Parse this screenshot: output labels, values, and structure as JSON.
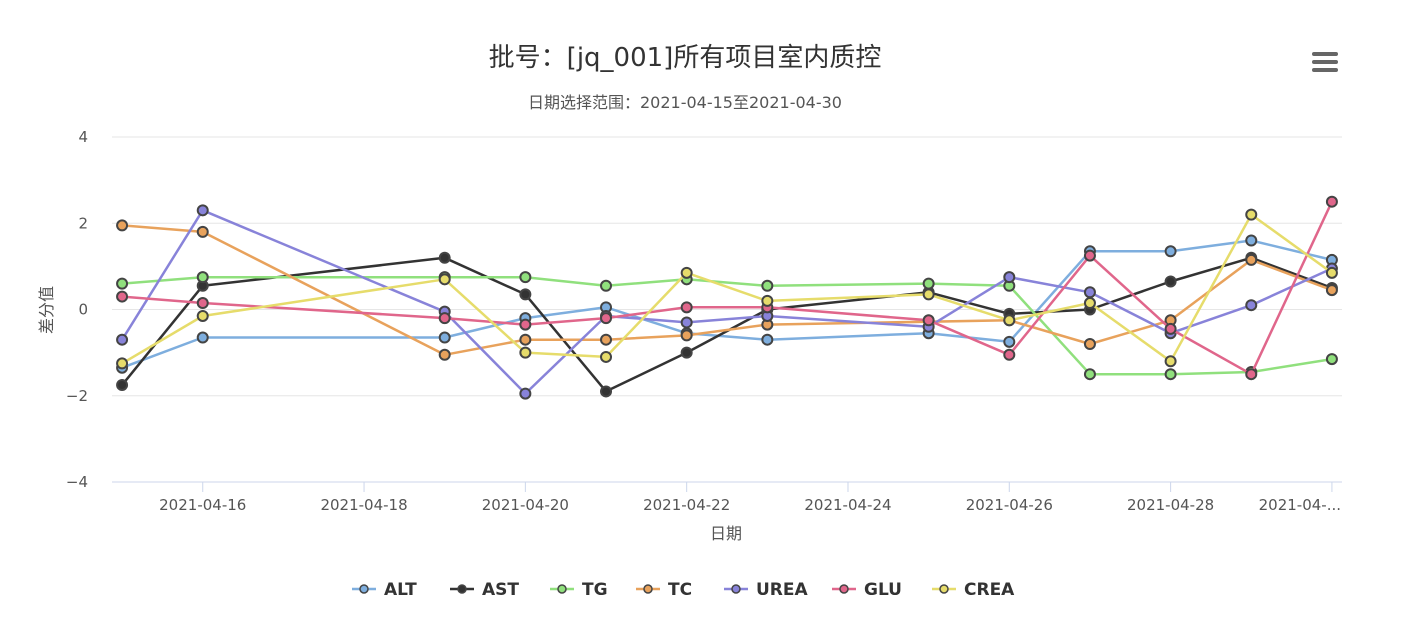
{
  "chart_data": {
    "type": "line",
    "title": "批号：[jq_001]所有项目室内质控",
    "subtitle": "日期选择范围：2021-04-15至2021-04-30",
    "xlabel": "日期",
    "ylabel": "差分值",
    "ylim": [
      -4,
      4
    ],
    "y_ticks": [
      "4",
      "2",
      "0",
      "−2",
      "−4"
    ],
    "y_tick_values": [
      4,
      2,
      0,
      -2,
      -4
    ],
    "xlim": [
      "2021-04-14 21:00",
      "2021-04-30 03:00"
    ],
    "x_tick_dates": [
      "2021-04-16",
      "2021-04-18",
      "2021-04-20",
      "2021-04-22",
      "2021-04-24",
      "2021-04-26",
      "2021-04-28",
      "2021-04-30"
    ],
    "x_tick_labels": [
      "2021-04-16",
      "2021-04-18",
      "2021-04-20",
      "2021-04-22",
      "2021-04-24",
      "2021-04-26",
      "2021-04-28",
      "2021-04-..."
    ],
    "legend_position": "bottom",
    "grid": true,
    "series": [
      {
        "name": "ALT",
        "color": "#7eaede",
        "x": [
          "2021-04-15",
          "2021-04-16",
          "2021-04-19",
          "2021-04-20",
          "2021-04-21",
          "2021-04-22",
          "2021-04-23",
          "2021-04-25",
          "2021-04-26",
          "2021-04-27",
          "2021-04-28",
          "2021-04-29",
          "2021-04-30"
        ],
        "y": [
          -1.35,
          -0.65,
          -0.65,
          -0.2,
          0.05,
          -0.55,
          -0.7,
          -0.55,
          -0.75,
          1.35,
          1.35,
          1.6,
          1.15
        ]
      },
      {
        "name": "AST",
        "color": "#333333",
        "x": [
          "2021-04-15",
          "2021-04-16",
          "2021-04-19",
          "2021-04-20",
          "2021-04-21",
          "2021-04-22",
          "2021-04-23",
          "2021-04-25",
          "2021-04-26",
          "2021-04-27",
          "2021-04-28",
          "2021-04-29",
          "2021-04-30"
        ],
        "y": [
          -1.75,
          0.55,
          1.2,
          0.35,
          -1.9,
          -1.0,
          0.0,
          0.4,
          -0.1,
          0.0,
          0.65,
          1.2,
          0.5
        ]
      },
      {
        "name": "TG",
        "color": "#90e07d",
        "x": [
          "2021-04-15",
          "2021-04-16",
          "2021-04-19",
          "2021-04-20",
          "2021-04-21",
          "2021-04-22",
          "2021-04-23",
          "2021-04-25",
          "2021-04-26",
          "2021-04-27",
          "2021-04-28",
          "2021-04-29",
          "2021-04-30"
        ],
        "y": [
          0.6,
          0.75,
          0.75,
          0.75,
          0.55,
          0.7,
          0.55,
          0.6,
          0.55,
          -1.5,
          -1.5,
          -1.45,
          -1.15
        ]
      },
      {
        "name": "TC",
        "color": "#e8a25c",
        "x": [
          "2021-04-15",
          "2021-04-16",
          "2021-04-19",
          "2021-04-20",
          "2021-04-21",
          "2021-04-22",
          "2021-04-23",
          "2021-04-26",
          "2021-04-27",
          "2021-04-28",
          "2021-04-29",
          "2021-04-30"
        ],
        "y": [
          1.95,
          1.8,
          -1.05,
          -0.7,
          -0.7,
          -0.6,
          -0.35,
          -0.25,
          -0.8,
          -0.25,
          1.15,
          0.45
        ]
      },
      {
        "name": "UREA",
        "color": "#8883d9",
        "x": [
          "2021-04-15",
          "2021-04-16",
          "2021-04-19",
          "2021-04-20",
          "2021-04-21",
          "2021-04-22",
          "2021-04-23",
          "2021-04-25",
          "2021-04-26",
          "2021-04-27",
          "2021-04-28",
          "2021-04-29",
          "2021-04-30"
        ],
        "y": [
          -0.7,
          2.3,
          -0.05,
          -1.95,
          -0.15,
          -0.3,
          -0.15,
          -0.4,
          0.75,
          0.4,
          -0.55,
          0.1,
          0.95
        ]
      },
      {
        "name": "GLU",
        "color": "#e0668b",
        "x": [
          "2021-04-15",
          "2021-04-16",
          "2021-04-19",
          "2021-04-20",
          "2021-04-21",
          "2021-04-22",
          "2021-04-23",
          "2021-04-25",
          "2021-04-26",
          "2021-04-27",
          "2021-04-28",
          "2021-04-29",
          "2021-04-30"
        ],
        "y": [
          0.3,
          0.15,
          -0.2,
          -0.35,
          -0.2,
          0.05,
          0.05,
          -0.25,
          -1.05,
          1.25,
          -0.45,
          -1.5,
          2.5
        ]
      },
      {
        "name": "CREA",
        "color": "#e6dc6b",
        "x": [
          "2021-04-15",
          "2021-04-16",
          "2021-04-19",
          "2021-04-20",
          "2021-04-21",
          "2021-04-22",
          "2021-04-23",
          "2021-04-25",
          "2021-04-26",
          "2021-04-27",
          "2021-04-28",
          "2021-04-29",
          "2021-04-30"
        ],
        "y": [
          -1.25,
          -0.15,
          0.7,
          -1.0,
          -1.1,
          0.85,
          0.2,
          0.35,
          -0.25,
          0.15,
          -1.2,
          2.2,
          0.85
        ]
      }
    ]
  }
}
